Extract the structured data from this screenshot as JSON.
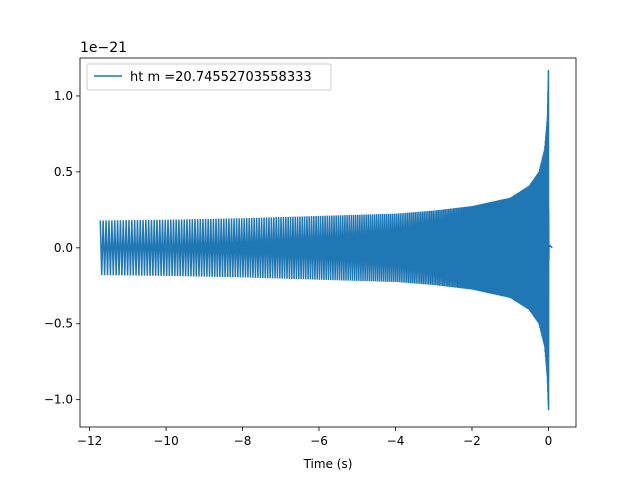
{
  "chart_data": {
    "type": "line",
    "title": "",
    "xlabel": "Time (s)",
    "ylabel": "",
    "y_offset_label": "1e−21",
    "xlim": [
      -12.25,
      0.72
    ],
    "ylim": [
      -1.18,
      1.25
    ],
    "x_ticks": [
      -12,
      -10,
      -8,
      -6,
      -4,
      -2,
      0
    ],
    "x_tick_labels": [
      "−12",
      "−10",
      "−8",
      "−6",
      "−4",
      "−2",
      "0"
    ],
    "y_ticks": [
      -1.0,
      -0.5,
      0.0,
      0.5,
      1.0
    ],
    "y_tick_labels": [
      "−1.0",
      "−0.5",
      "0.0",
      "0.5",
      "1.0"
    ],
    "grid": false,
    "legend_position": "top-left",
    "series": [
      {
        "name": "ht m =20.74552703558333",
        "color": "#1f77b4",
        "t_start": -11.72,
        "t_merger": 0.0,
        "t_end": 0.1,
        "x": [
          -11.72,
          -10,
          -8,
          -6,
          -4,
          -3,
          -2,
          -1,
          -0.5,
          -0.25,
          -0.1,
          -0.03,
          0.0,
          0.005,
          0.02,
          0.1
        ],
        "upper_envelope": [
          0.18,
          0.185,
          0.195,
          0.21,
          0.225,
          0.245,
          0.275,
          0.33,
          0.41,
          0.5,
          0.65,
          0.85,
          1.17,
          0.3,
          0.0,
          0.0
        ],
        "lower_envelope": [
          -0.18,
          -0.185,
          -0.195,
          -0.21,
          -0.225,
          -0.245,
          -0.275,
          -0.33,
          -0.41,
          -0.5,
          -0.65,
          -0.85,
          -1.07,
          -0.3,
          0.0,
          0.0
        ]
      }
    ]
  }
}
